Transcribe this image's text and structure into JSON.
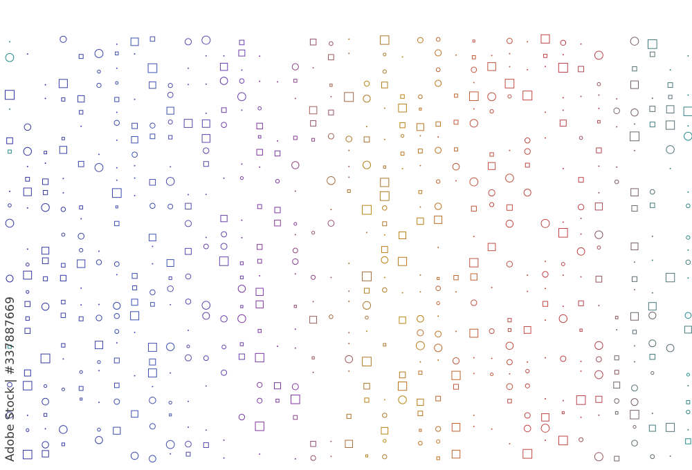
{
  "watermark": {
    "text": "Adobe Stock | #337887669"
  },
  "pattern": {
    "shapes": [
      "circle",
      "square",
      "dot"
    ],
    "palette": [
      "#2e2f9e",
      "#3b4fb0",
      "#6a3fa8",
      "#9b3a9a",
      "#b8860b",
      "#c07a2a",
      "#c0453f",
      "#1f8a8a"
    ],
    "background": "#ffffff"
  }
}
